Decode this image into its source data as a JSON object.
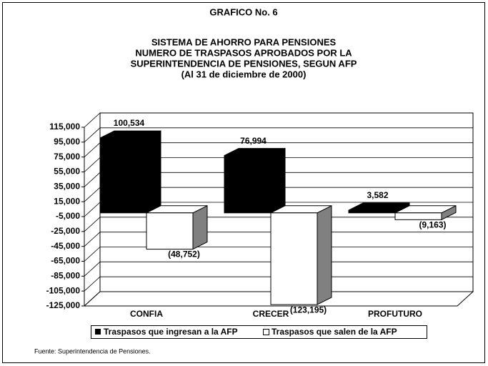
{
  "chart_data": {
    "type": "bar3d",
    "title": "GRAFICO No. 6",
    "subtitle": [
      "SISTEMA DE AHORRO PARA PENSIONES",
      "NUMERO DE TRASPASOS APROBADOS POR LA",
      "SUPERINTENDENCIA DE PENSIONES, SEGUN AFP",
      "(Al 31 de diciembre de 2000)"
    ],
    "categories": [
      "CONFIA",
      "CRECER",
      "PROFUTURO"
    ],
    "series": [
      {
        "name": "Traspasos que ingresan a la AFP",
        "color": "#000000",
        "side_color": "#000000",
        "values": [
          100534,
          76994,
          3582
        ],
        "value_labels": [
          "100,534",
          "76,994",
          "3,582"
        ]
      },
      {
        "name": "Traspasos que salen de la AFP",
        "color": "#ffffff",
        "side_color": "#808080",
        "values": [
          -48752,
          -123195,
          -9163
        ],
        "value_labels": [
          "(48,752)",
          "(123,195)",
          "(9,163)"
        ]
      }
    ],
    "ylim": [
      -125000,
      115000
    ],
    "yticks": [
      {
        "value": -125000,
        "label": "-125,000"
      },
      {
        "value": -105000,
        "label": "-105,000"
      },
      {
        "value": -85000,
        "label": "-85,000"
      },
      {
        "value": -65000,
        "label": "-65,000"
      },
      {
        "value": -45000,
        "label": "-45,000"
      },
      {
        "value": -25000,
        "label": "-25,000"
      },
      {
        "value": -5000,
        "label": "-5,000"
      },
      {
        "value": 15000,
        "label": "15,000"
      },
      {
        "value": 35000,
        "label": "35,000"
      },
      {
        "value": 55000,
        "label": "55,000"
      },
      {
        "value": 75000,
        "label": "75,000"
      },
      {
        "value": 95000,
        "label": "95,000"
      },
      {
        "value": 115000,
        "label": "115,000"
      }
    ],
    "grid": true,
    "legend": "bottom",
    "source": "Fuente: Superintendencia de Pensiones."
  }
}
